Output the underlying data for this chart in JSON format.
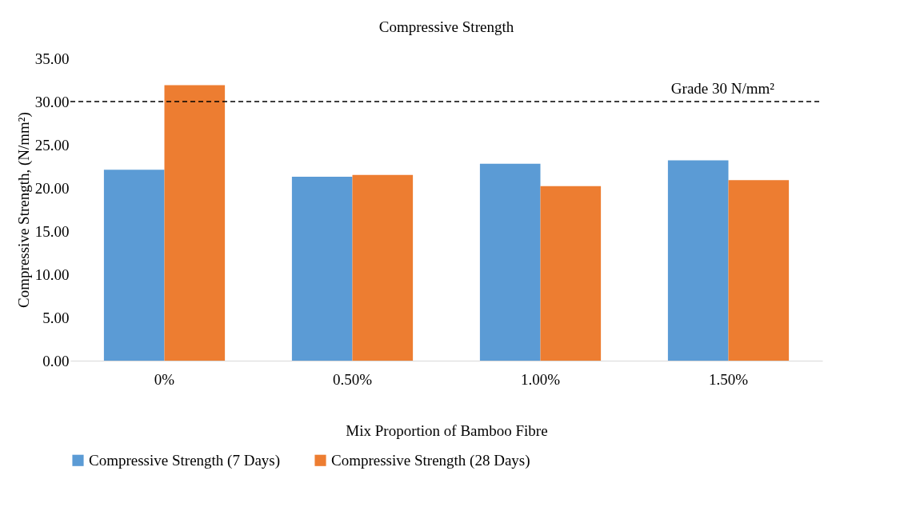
{
  "chart_data": {
    "type": "bar",
    "title": "Compressive Strength",
    "xlabel": "Mix Proportion of Bamboo Fibre",
    "ylabel": "Compressive Strength, (N/mm²)",
    "categories": [
      "0%",
      "0.50%",
      "1.00%",
      "1.50%"
    ],
    "series": [
      {
        "name": "Compressive Strength (7 Days)",
        "color": "#5b9bd5",
        "values": [
          22.1,
          21.3,
          22.8,
          23.2
        ]
      },
      {
        "name": "Compressive Strength (28 Days)",
        "color": "#ed7d31",
        "values": [
          31.9,
          21.5,
          20.2,
          20.9
        ]
      }
    ],
    "ylim": [
      0,
      35
    ],
    "yticks": [
      {
        "value": 0,
        "label": "0.00"
      },
      {
        "value": 5,
        "label": "5.00"
      },
      {
        "value": 10,
        "label": "10.00"
      },
      {
        "value": 15,
        "label": "15.00"
      },
      {
        "value": 20,
        "label": "20.00"
      },
      {
        "value": 25,
        "label": "25.00"
      },
      {
        "value": 30,
        "label": "30.00"
      },
      {
        "value": 35,
        "label": "35.00"
      }
    ],
    "ref_lines": [
      {
        "axis": "y",
        "value": 30,
        "label": "Grade 30 N/mm²",
        "color": "#000000",
        "line_style": "dashed"
      }
    ],
    "grid": false,
    "legend": "bottom"
  }
}
